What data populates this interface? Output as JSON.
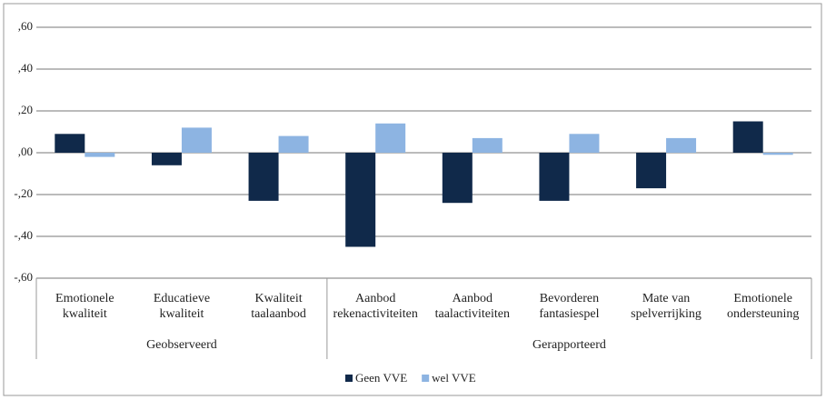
{
  "chart_data": {
    "type": "bar",
    "groups": [
      {
        "label": "Geobserveerd",
        "categories": [
          "Emotionele\nkwaliteit",
          "Educatieve\nkwaliteit",
          "Kwaliteit\ntaalaanbod"
        ]
      },
      {
        "label": "Gerapporteerd",
        "categories": [
          "Aanbod\nrekenactiviteiten",
          "Aanbod\ntaalactiviteiten",
          "Bevorderen\nfantasiespel",
          "Mate van\nspelverrijking",
          "Emotionele\nondersteuning"
        ]
      }
    ],
    "series": [
      {
        "name": "Geen VVE",
        "color": "#10294a",
        "values": [
          0.09,
          -0.06,
          -0.23,
          -0.45,
          -0.24,
          -0.23,
          -0.17,
          0.15
        ]
      },
      {
        "name": "wel VVE",
        "color": "#8db4e2",
        "values": [
          -0.02,
          0.12,
          0.08,
          0.14,
          0.07,
          0.09,
          0.07,
          -0.01
        ]
      }
    ],
    "ylim": [
      -0.6,
      0.6
    ],
    "yticks": [
      {
        "value": -0.6,
        "label": "-,60"
      },
      {
        "value": -0.4,
        "label": "-,40"
      },
      {
        "value": -0.2,
        "label": "-,20"
      },
      {
        "value": 0,
        "label": ",00"
      },
      {
        "value": 0.2,
        "label": ",20"
      },
      {
        "value": 0.4,
        "label": ",40"
      },
      {
        "value": 0.6,
        "label": ",60"
      }
    ],
    "grid": true,
    "legend": "bottom"
  }
}
